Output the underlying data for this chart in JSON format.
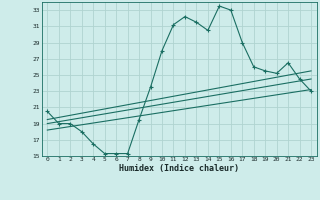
{
  "xlabel": "Humidex (Indice chaleur)",
  "background_color": "#ceecea",
  "grid_color": "#b0d4d0",
  "line_color": "#1a6e62",
  "xlim": [
    -0.5,
    23.5
  ],
  "ylim": [
    15,
    34
  ],
  "yticks": [
    15,
    17,
    19,
    21,
    23,
    25,
    27,
    29,
    31,
    33
  ],
  "xticks": [
    0,
    1,
    2,
    3,
    4,
    5,
    6,
    7,
    8,
    9,
    10,
    11,
    12,
    13,
    14,
    15,
    16,
    17,
    18,
    19,
    20,
    21,
    22,
    23
  ],
  "series1_x": [
    0,
    1,
    2,
    3,
    4,
    5,
    6,
    7,
    8,
    9,
    10,
    11,
    12,
    13,
    14,
    15,
    16,
    17,
    18,
    19,
    20,
    21,
    22,
    23
  ],
  "series1_y": [
    20.5,
    19.0,
    19.0,
    18.0,
    16.5,
    15.3,
    15.3,
    15.3,
    19.5,
    23.5,
    28.0,
    31.2,
    32.2,
    31.5,
    30.5,
    33.5,
    33.0,
    29.0,
    26.0,
    25.5,
    25.2,
    26.5,
    24.5,
    23.0
  ],
  "series2_x": [
    0,
    23
  ],
  "series2_y": [
    19.5,
    25.5
  ],
  "series3_x": [
    0,
    23
  ],
  "series3_y": [
    19.0,
    24.5
  ],
  "series4_x": [
    0,
    23
  ],
  "series4_y": [
    18.2,
    23.2
  ]
}
